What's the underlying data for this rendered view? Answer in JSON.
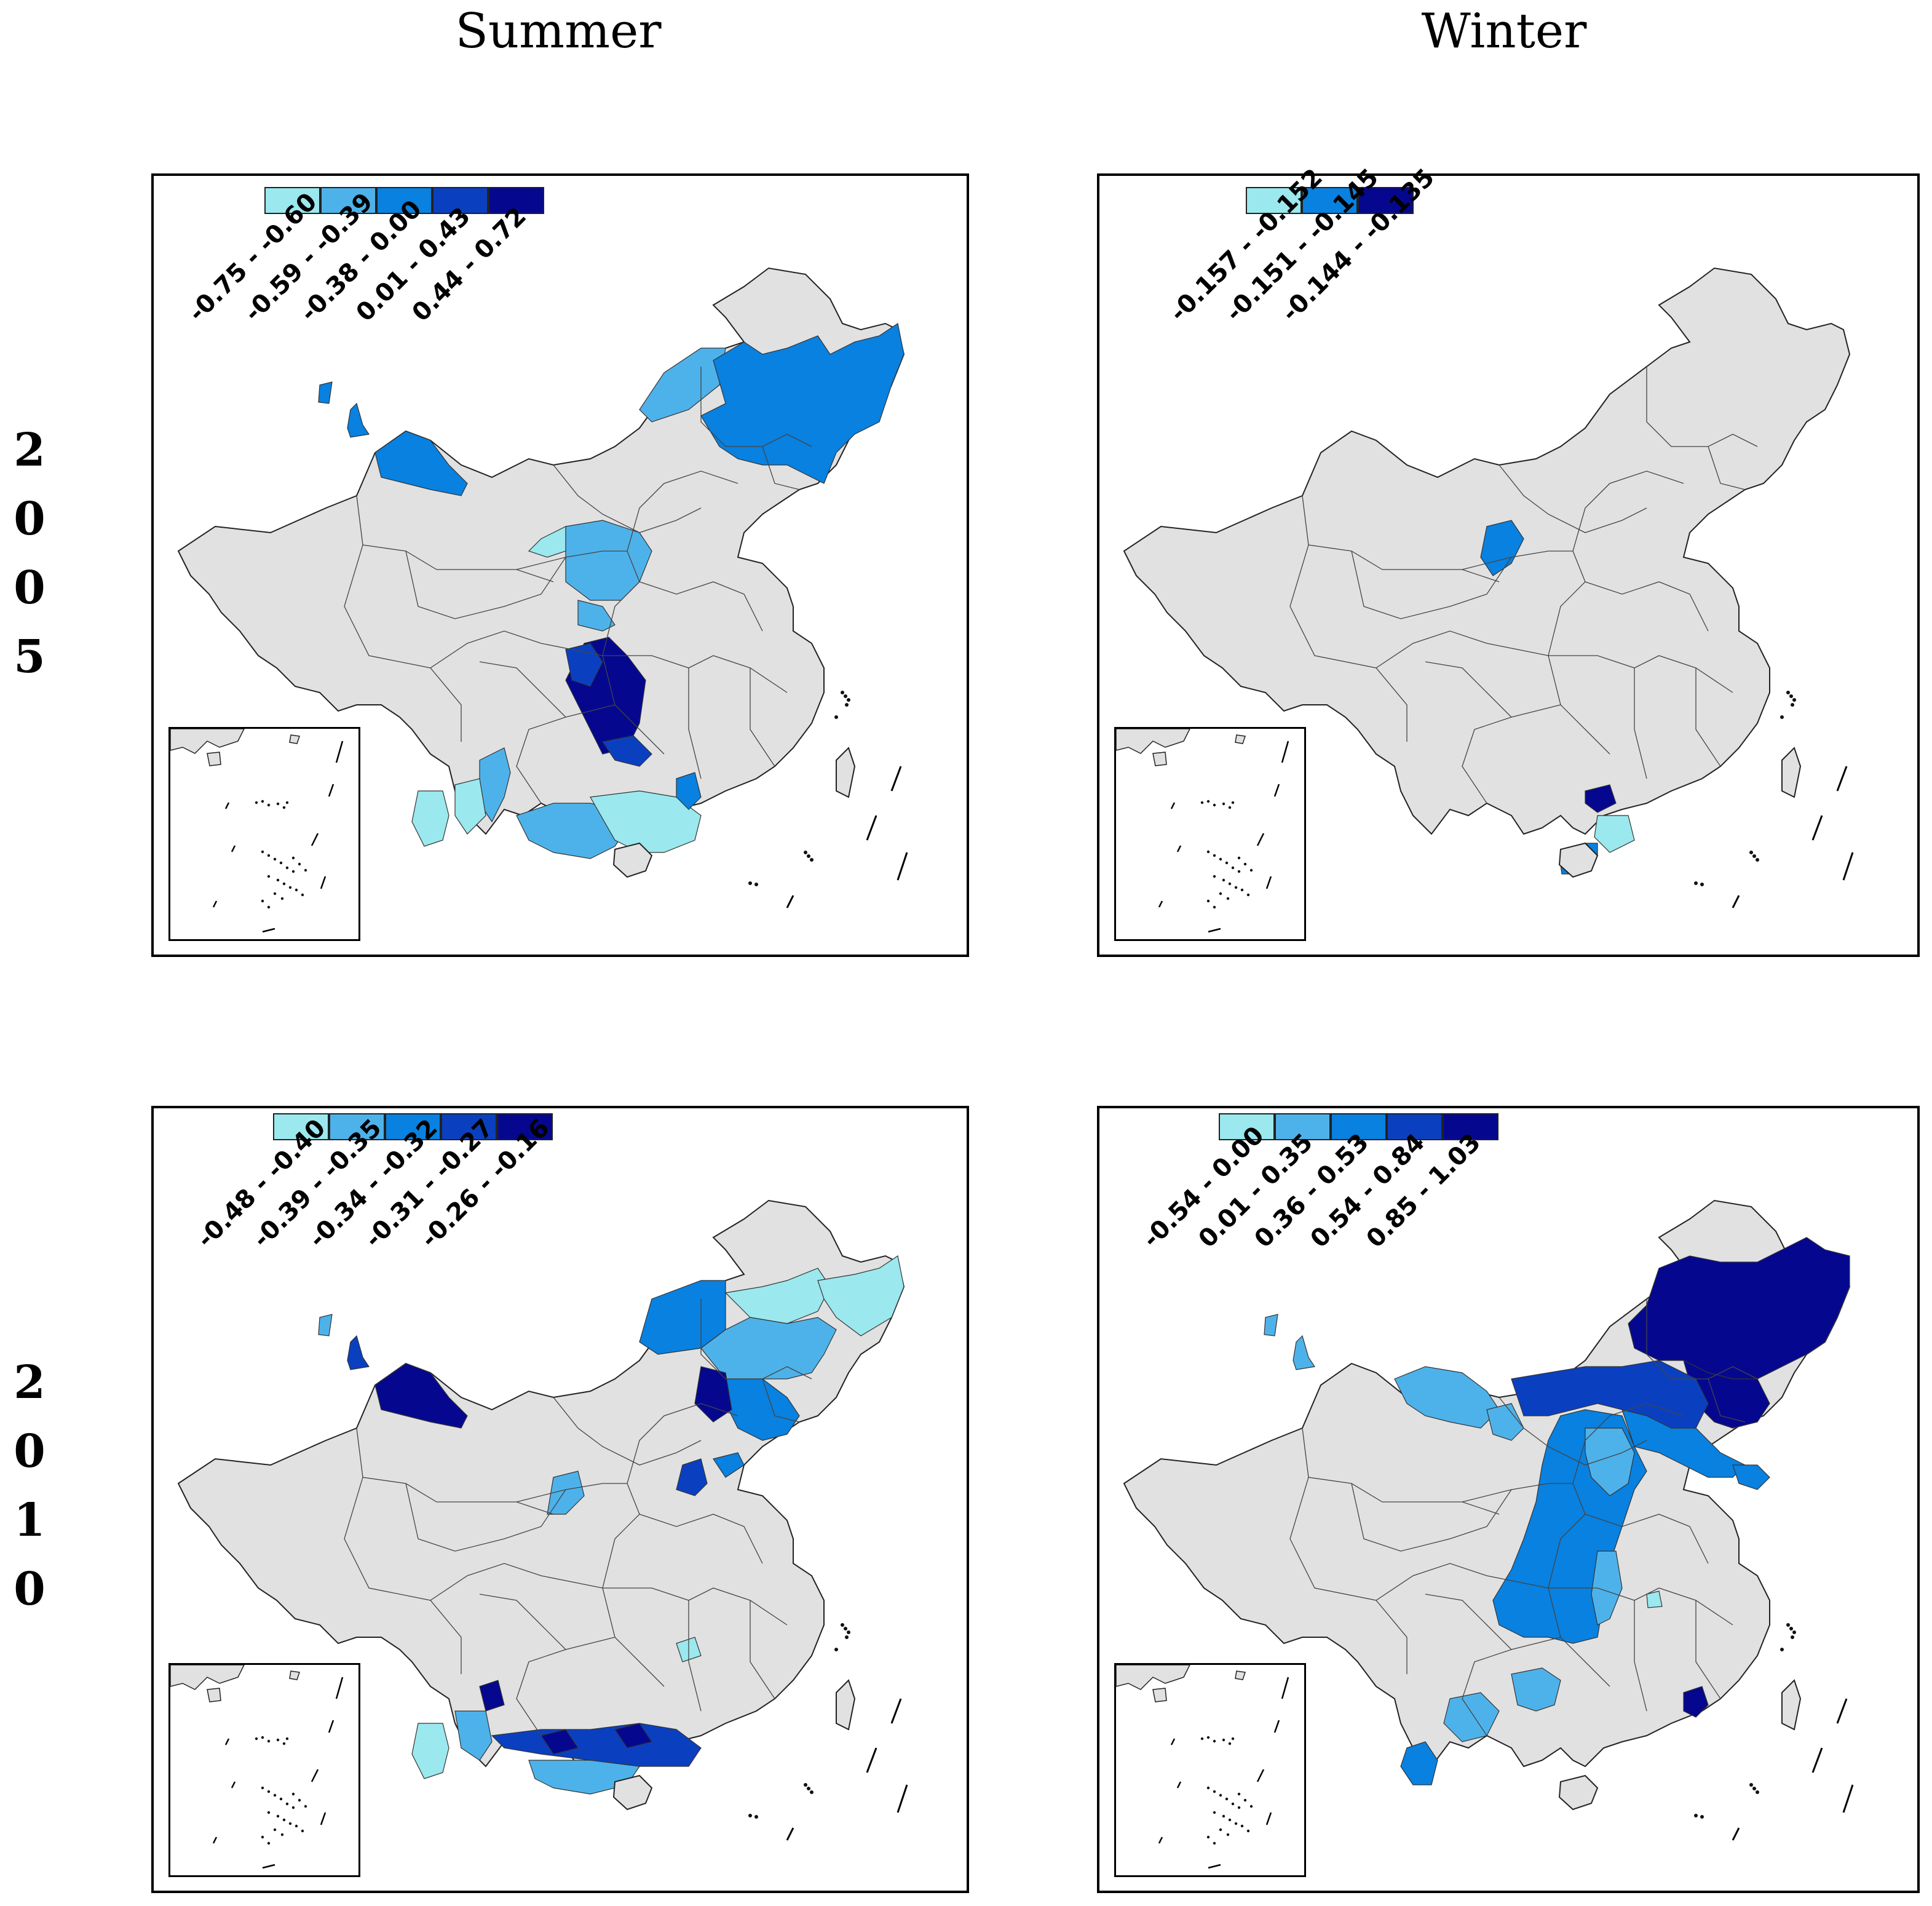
{
  "columns": [
    "Summer",
    "Winter"
  ],
  "rows": [
    {
      "year_digits": [
        "2",
        "0",
        "0",
        "5"
      ]
    },
    {
      "year_digits": [
        "2",
        "0",
        "1",
        "0"
      ]
    }
  ],
  "colors": {
    "base": "#e1e1e1",
    "c1": "#9be8ee",
    "c2": "#4eb2ea",
    "c3": "#0881e0",
    "c4": "#0a40c0",
    "c5": "#05088e"
  },
  "panels": [
    {
      "id": "summer-2005",
      "legend": [
        {
          "label": "-0.75 - -0.60",
          "color": "#9be8ee"
        },
        {
          "label": "-0.59 - -0.39",
          "color": "#4eb2ea"
        },
        {
          "label": "-0.38 - 0.00",
          "color": "#0881e0"
        },
        {
          "label": "0.01 - 0.43",
          "color": "#0a40c0"
        },
        {
          "label": "0.44 - 0.72",
          "color": "#05088e"
        }
      ]
    },
    {
      "id": "winter-2005",
      "legend": [
        {
          "label": "-0.157 - -0.152",
          "color": "#9be8ee"
        },
        {
          "label": "-0.151 - -0.145",
          "color": "#0881e0"
        },
        {
          "label": "-0.144 - -0.135",
          "color": "#05088e"
        }
      ]
    },
    {
      "id": "summer-2010",
      "legend": [
        {
          "label": "-0.48 - -0.40",
          "color": "#9be8ee"
        },
        {
          "label": "-0.39 - -0.35",
          "color": "#4eb2ea"
        },
        {
          "label": "-0.34 - -0.32",
          "color": "#0881e0"
        },
        {
          "label": "-0.31 - -0.27",
          "color": "#0a40c0"
        },
        {
          "label": "-0.26 - -0.16",
          "color": "#05088e"
        }
      ]
    },
    {
      "id": "winter-2010",
      "legend": [
        {
          "label": "-0.54 - 0.00",
          "color": "#9be8ee"
        },
        {
          "label": "0.01 - 0.35",
          "color": "#4eb2ea"
        },
        {
          "label": "0.36 - 0.53",
          "color": "#0881e0"
        },
        {
          "label": "0.54 - 0.84",
          "color": "#0a40c0"
        },
        {
          "label": "0.85 - 1.03",
          "color": "#05088e"
        }
      ]
    }
  ]
}
